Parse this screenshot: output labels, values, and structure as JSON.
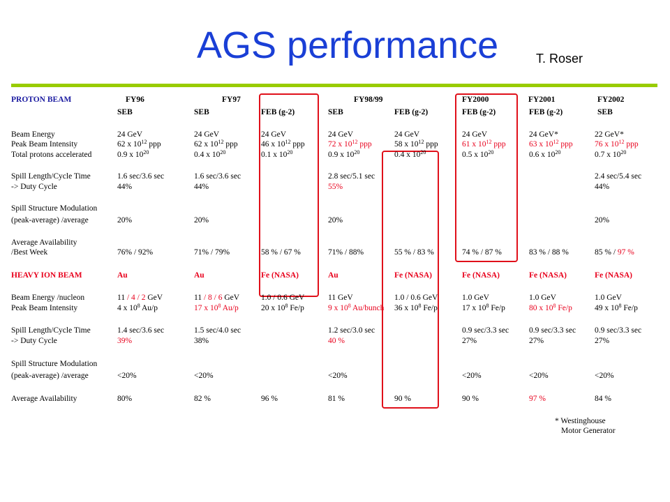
{
  "title": "AGS performance",
  "author": "T. Roser",
  "colors": {
    "title": "#1a3fd6",
    "accent_rule": "#99cc00",
    "highlight": "#e8001c",
    "header": "#1a1aa0"
  },
  "proton": {
    "section_label": "PROTON BEAM",
    "years": [
      "FY96",
      "FY97",
      "FY98/99",
      "FY2000",
      "FY2001",
      "FY2002"
    ],
    "modes": [
      "SEB",
      "SEB",
      "FEB (g-2)",
      "SEB",
      "FEB (g-2)",
      "FEB (g-2)",
      "FEB (g-2)",
      "SEB"
    ],
    "rows": [
      {
        "label": "Beam Energy",
        "cells": [
          "24 GeV",
          "24 GeV",
          "24 GeV",
          "24 GeV",
          "24 GeV",
          "24 GeV",
          "24 GeV*",
          "22 GeV*"
        ]
      },
      {
        "label": "Peak Beam Intensity",
        "cells": [
          "62 x 10^12 ppp",
          "62 x 10^12 ppp",
          "46 x 10^12 ppp",
          "72 x 10^12 ppp",
          "58 x 10^12 ppp",
          "61 x 10^12 ppp",
          "63 x 10^12 ppp",
          "76 x 10^12 ppp"
        ]
      },
      {
        "label": "Total protons accelerated",
        "cells": [
          "0.9 x 10^20",
          "0.4 x 10^20",
          "0.1 x 10^20",
          "0.9 x 10^20",
          "0.4 x 10^20",
          "0.5 x 10^20",
          "0.6 x 10^20",
          "0.7 x 10^20"
        ]
      },
      {
        "label": "Spill Length/Cycle Time",
        "cells": [
          "1.6 sec/3.6 sec",
          "1.6 sec/3.6 sec",
          "",
          "2.8 sec/5.1 sec",
          "",
          "",
          "",
          "2.4 sec/5.4 sec"
        ]
      },
      {
        "label": "-> Duty Cycle",
        "cells": [
          "44%",
          "44%",
          "",
          "55%",
          "",
          "",
          "",
          "44%"
        ]
      },
      {
        "label": "Spill Structure Modulation",
        "cells": [
          "",
          "",
          "",
          "",
          "",
          "",
          "",
          ""
        ]
      },
      {
        "label": "(peak-average) /average",
        "cells": [
          "20%",
          "20%",
          "",
          "20%",
          "",
          "",
          "",
          "20%"
        ]
      },
      {
        "label": "Average Availability",
        "cells": [
          "",
          "",
          "",
          "",
          "",
          "",
          "",
          ""
        ]
      },
      {
        "label": "/Best Week",
        "cells": [
          "76% / 92%",
          "71% / 79%",
          "58 % / 67 %",
          "71% / 88%",
          "55 % / 83 %",
          "74 % / 87 %",
          "83 % / 88 %",
          "85 % / 97 %"
        ]
      }
    ]
  },
  "heavy_ion": {
    "section_label": "HEAVY ION BEAM",
    "species": [
      "Au",
      "Au",
      "Fe (NASA)",
      "Au",
      "Fe (NASA)",
      "Fe (NASA)",
      "Fe (NASA)",
      "Fe (NASA)"
    ],
    "rows": [
      {
        "label": "Beam Energy /nucleon",
        "cells": [
          "11 / 4 / 2 GeV",
          "11 / 8 / 6 GeV",
          "1.0 / 0.6 GeV",
          "11 GeV",
          "1.0 / 0.6 GeV",
          "1.0 GeV",
          "1.0 GeV",
          "1.0 GeV"
        ]
      },
      {
        "label": "Peak Beam Intensity",
        "cells": [
          "4 x 10^8 Au/p",
          "17 x 10^8 Au/p",
          "20 x 10^8 Fe/p",
          "9 x 10^8 Au/bunch",
          "36 x 10^8 Fe/p",
          "17 x 10^8 Fe/p",
          "80 x 10^8 Fe/p",
          "49 x 10^8 Fe/p"
        ]
      },
      {
        "label": "Spill Length/Cycle Time",
        "cells": [
          "1.4 sec/3.6 sec",
          "1.5 sec/4.0 sec",
          "",
          "1.2 sec/3.0 sec",
          "",
          "0.9 sec/3.3 sec",
          "0.9 sec/3.3 sec",
          "0.9 sec/3.3 sec"
        ]
      },
      {
        "label": "-> Duty Cycle",
        "cells": [
          "39%",
          "38%",
          "",
          "40 %",
          "",
          "27%",
          "27%",
          "27%"
        ]
      },
      {
        "label": "Spill Structure Modulation",
        "cells": [
          "",
          "",
          "",
          "",
          "",
          "",
          "",
          ""
        ]
      },
      {
        "label": "(peak-average) /average",
        "cells": [
          "<20%",
          "<20%",
          "",
          "<20%",
          "",
          "<20%",
          "<20%",
          "<20%"
        ]
      },
      {
        "label": "Average Availability",
        "cells": [
          "80%",
          "82 %",
          "96 %",
          "81 %",
          "90 %",
          "90 %",
          "97 %",
          "84 %"
        ]
      }
    ]
  },
  "footnote": [
    "* Westinghouse",
    "Motor Generator"
  ]
}
